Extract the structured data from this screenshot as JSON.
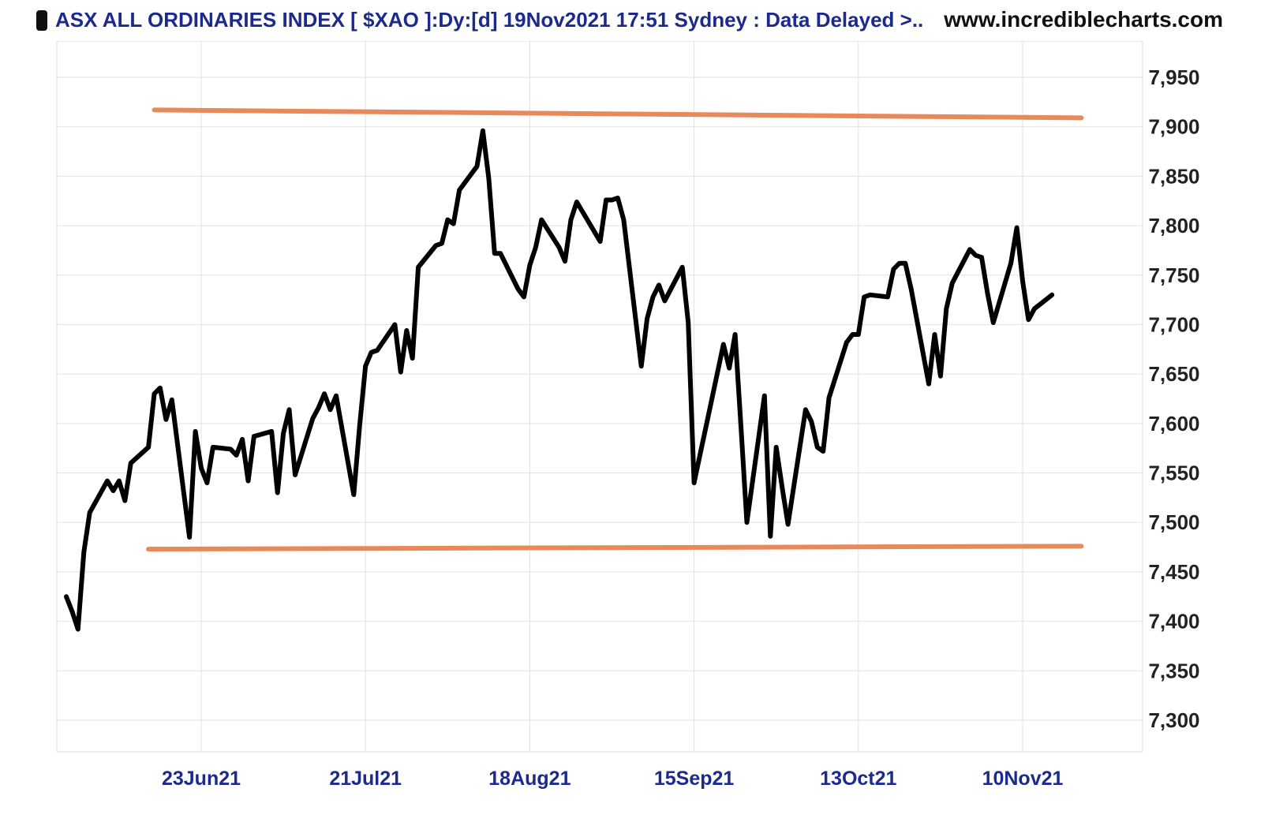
{
  "header": {
    "title": "ASX ALL ORDINARIES INDEX [ $XAO ]:Dy:[d]  19Nov2021 17:51 Sydney : Data Delayed >..",
    "site": "www.incrediblecharts.com"
  },
  "chart_data": {
    "type": "line",
    "title": "ASX ALL ORDINARIES INDEX [ $XAO ]:Dy:[d]  19Nov2021 17:51 Sydney : Data Delayed >..",
    "xlabel": "",
    "ylabel": "",
    "ylim": [
      7275,
      7985
    ],
    "y_ticks": [
      7300,
      7350,
      7400,
      7450,
      7500,
      7550,
      7600,
      7650,
      7700,
      7750,
      7800,
      7850,
      7900,
      7950
    ],
    "x_ticks": [
      {
        "label": "23Jun21",
        "date": "2021-06-23"
      },
      {
        "label": "21Jul21",
        "date": "2021-07-21"
      },
      {
        "label": "18Aug21",
        "date": "2021-08-18"
      },
      {
        "label": "15Sep21",
        "date": "2021-09-15"
      },
      {
        "label": "13Oct21",
        "date": "2021-10-13"
      },
      {
        "label": "10Nov21",
        "date": "2021-11-10"
      }
    ],
    "xlim": [
      "2021-05-29",
      "2021-11-23"
    ],
    "grid": true,
    "axis_side": "right",
    "line_color": "#000000",
    "channel_color": "#e8895a",
    "series": [
      {
        "values": [
          [
            "2021-05-31",
            7425
          ],
          [
            "2021-06-01",
            7410
          ],
          [
            "2021-06-02",
            7392
          ],
          [
            "2021-06-03",
            7470
          ],
          [
            "2021-06-04",
            7510
          ],
          [
            "2021-06-07",
            7542
          ],
          [
            "2021-06-08",
            7532
          ],
          [
            "2021-06-09",
            7542
          ],
          [
            "2021-06-10",
            7522
          ],
          [
            "2021-06-11",
            7560
          ],
          [
            "2021-06-14",
            7576
          ],
          [
            "2021-06-15",
            7630
          ],
          [
            "2021-06-16",
            7636
          ],
          [
            "2021-06-17",
            7604
          ],
          [
            "2021-06-18",
            7624
          ],
          [
            "2021-06-21",
            7485
          ],
          [
            "2021-06-22",
            7592
          ],
          [
            "2021-06-23",
            7555
          ],
          [
            "2021-06-24",
            7540
          ],
          [
            "2021-06-25",
            7576
          ],
          [
            "2021-06-28",
            7574
          ],
          [
            "2021-06-29",
            7568
          ],
          [
            "2021-06-30",
            7584
          ],
          [
            "2021-07-01",
            7542
          ],
          [
            "2021-07-02",
            7587
          ],
          [
            "2021-07-05",
            7592
          ],
          [
            "2021-07-06",
            7530
          ],
          [
            "2021-07-07",
            7590
          ],
          [
            "2021-07-08",
            7614
          ],
          [
            "2021-07-09",
            7548
          ],
          [
            "2021-07-12",
            7605
          ],
          [
            "2021-07-13",
            7616
          ],
          [
            "2021-07-14",
            7630
          ],
          [
            "2021-07-15",
            7614
          ],
          [
            "2021-07-16",
            7628
          ],
          [
            "2021-07-19",
            7528
          ],
          [
            "2021-07-20",
            7598
          ],
          [
            "2021-07-21",
            7658
          ],
          [
            "2021-07-22",
            7672
          ],
          [
            "2021-07-23",
            7674
          ],
          [
            "2021-07-26",
            7700
          ],
          [
            "2021-07-27",
            7652
          ],
          [
            "2021-07-28",
            7694
          ],
          [
            "2021-07-29",
            7666
          ],
          [
            "2021-07-30",
            7758
          ],
          [
            "2021-08-02",
            7780
          ],
          [
            "2021-08-03",
            7782
          ],
          [
            "2021-08-04",
            7806
          ],
          [
            "2021-08-05",
            7802
          ],
          [
            "2021-08-06",
            7836
          ],
          [
            "2021-08-09",
            7860
          ],
          [
            "2021-08-10",
            7896
          ],
          [
            "2021-08-11",
            7848
          ],
          [
            "2021-08-12",
            7772
          ],
          [
            "2021-08-13",
            7772
          ],
          [
            "2021-08-16",
            7736
          ],
          [
            "2021-08-17",
            7728
          ],
          [
            "2021-08-18",
            7760
          ],
          [
            "2021-08-19",
            7778
          ],
          [
            "2021-08-20",
            7806
          ],
          [
            "2021-08-23",
            7778
          ],
          [
            "2021-08-24",
            7764
          ],
          [
            "2021-08-25",
            7806
          ],
          [
            "2021-08-26",
            7824
          ],
          [
            "2021-08-27",
            7814
          ],
          [
            "2021-08-30",
            7784
          ],
          [
            "2021-08-31",
            7826
          ],
          [
            "2021-09-01",
            7826
          ],
          [
            "2021-09-02",
            7828
          ],
          [
            "2021-09-03",
            7806
          ],
          [
            "2021-09-06",
            7658
          ],
          [
            "2021-09-07",
            7706
          ],
          [
            "2021-09-08",
            7728
          ],
          [
            "2021-09-09",
            7740
          ],
          [
            "2021-09-10",
            7724
          ],
          [
            "2021-09-13",
            7758
          ],
          [
            "2021-09-14",
            7702
          ],
          [
            "2021-09-15",
            7540
          ],
          [
            "2021-09-16",
            7568
          ],
          [
            "2021-09-17",
            7596
          ],
          [
            "2021-09-20",
            7680
          ],
          [
            "2021-09-21",
            7656
          ],
          [
            "2021-09-22",
            7690
          ],
          [
            "2021-09-23",
            7596
          ],
          [
            "2021-09-24",
            7500
          ],
          [
            "2021-09-27",
            7628
          ],
          [
            "2021-09-28",
            7486
          ],
          [
            "2021-09-29",
            7576
          ],
          [
            "2021-09-30",
            7536
          ],
          [
            "2021-10-01",
            7498
          ],
          [
            "2021-10-04",
            7614
          ],
          [
            "2021-10-05",
            7602
          ],
          [
            "2021-10-06",
            7576
          ],
          [
            "2021-10-07",
            7572
          ],
          [
            "2021-10-08",
            7626
          ],
          [
            "2021-10-11",
            7682
          ],
          [
            "2021-10-12",
            7690
          ],
          [
            "2021-10-13",
            7690
          ],
          [
            "2021-10-14",
            7728
          ],
          [
            "2021-10-15",
            7730
          ],
          [
            "2021-10-18",
            7728
          ],
          [
            "2021-10-19",
            7756
          ],
          [
            "2021-10-20",
            7762
          ],
          [
            "2021-10-21",
            7762
          ],
          [
            "2021-10-22",
            7736
          ],
          [
            "2021-10-25",
            7640
          ],
          [
            "2021-10-26",
            7690
          ],
          [
            "2021-10-27",
            7648
          ],
          [
            "2021-10-28",
            7716
          ],
          [
            "2021-10-29",
            7742
          ],
          [
            "2021-11-01",
            7776
          ],
          [
            "2021-11-02",
            7770
          ],
          [
            "2021-11-03",
            7768
          ],
          [
            "2021-11-04",
            7732
          ],
          [
            "2021-11-05",
            7702
          ],
          [
            "2021-11-08",
            7762
          ],
          [
            "2021-11-09",
            7798
          ],
          [
            "2021-11-10",
            7744
          ],
          [
            "2021-11-11",
            7705
          ],
          [
            "2021-11-12",
            7716
          ],
          [
            "2021-11-15",
            7730
          ]
        ]
      }
    ],
    "annotations": [
      {
        "type": "horizontal-line",
        "from": [
          "2021-06-15",
          7917
        ],
        "to": [
          "2021-11-20",
          7909
        ]
      },
      {
        "type": "horizontal-line",
        "from": [
          "2021-06-14",
          7473
        ],
        "to": [
          "2021-11-20",
          7476
        ]
      }
    ]
  }
}
